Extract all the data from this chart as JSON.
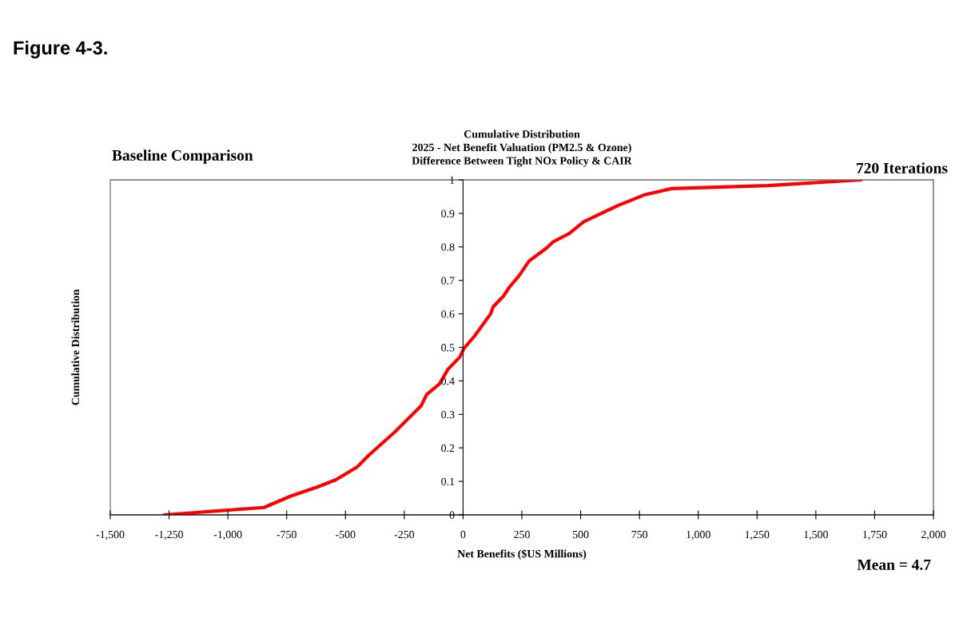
{
  "chart_data": {
    "type": "line",
    "title": "Cumulative Distribution\n2025 - Net Benefit Valuation (PM2.5 & Ozone)\nDifference Between Tight NOx Policy & CAIR",
    "xlabel": "Net Benefits ($US Millions)",
    "ylabel": "Cumulative Distribution",
    "annotations": [
      "Figure 4-3.",
      "Baseline Comparison",
      "720 Iterations",
      "Mean = 4.7"
    ],
    "series": [
      {
        "color": "#ff0000",
        "x": [
          -1270,
          -846,
          -733,
          -620,
          -540,
          -450,
          -404,
          -291,
          -178,
          -155,
          -99,
          -65,
          -14,
          3,
          49,
          117,
          128,
          173,
          196,
          236,
          281,
          354,
          383,
          451,
          513,
          660,
          774,
          887,
          1295,
          1692
        ],
        "values": [
          0,
          0.022,
          0.056,
          0.083,
          0.105,
          0.143,
          0.176,
          0.247,
          0.326,
          0.359,
          0.392,
          0.434,
          0.471,
          0.496,
          0.534,
          0.6,
          0.621,
          0.654,
          0.679,
          0.712,
          0.758,
          0.796,
          0.815,
          0.84,
          0.875,
          0.924,
          0.956,
          0.974,
          0.983,
          1.0
        ]
      }
    ],
    "xlim": [
      -1500,
      2000
    ],
    "xticks": [
      {
        "value": -1500,
        "label": "-1,500"
      },
      {
        "value": -1250,
        "label": "-1,250"
      },
      {
        "value": -1000,
        "label": "-1,000"
      },
      {
        "value": -750,
        "label": "-750"
      },
      {
        "value": -500,
        "label": "-500"
      },
      {
        "value": -250,
        "label": "-250"
      },
      {
        "value": 0,
        "label": "0"
      },
      {
        "value": 250,
        "label": "250"
      },
      {
        "value": 500,
        "label": "500"
      },
      {
        "value": 750,
        "label": "750"
      },
      {
        "value": 1000,
        "label": "1,000"
      },
      {
        "value": 1250,
        "label": "1,250"
      },
      {
        "value": 1500,
        "label": "1,500"
      },
      {
        "value": 1750,
        "label": "1,750"
      },
      {
        "value": 2000,
        "label": "2,000"
      }
    ],
    "ylim": [
      0,
      1
    ],
    "yticks": [
      0,
      0.1,
      0.2,
      0.3,
      0.4,
      0.5,
      0.6,
      0.7,
      0.8,
      0.9,
      1
    ],
    "grid": false,
    "legend": false,
    "marker": "none",
    "line_style": "solid"
  }
}
